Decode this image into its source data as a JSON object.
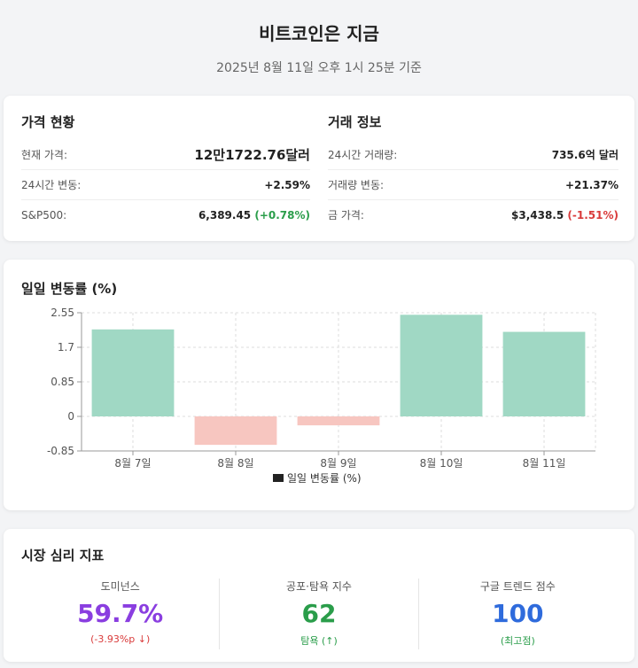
{
  "page": {
    "title": "비트코인은 지금",
    "subtitle": "2025년 8월 11일 오후 1시 25분 기준"
  },
  "price_status": {
    "heading": "가격 현황",
    "rows": [
      {
        "label": "현재 가격:",
        "value": "12만1722.76달러"
      },
      {
        "label": "24시간 변동:",
        "value": "+2.59%"
      },
      {
        "label": "S&P500:",
        "value": "6,389.45",
        "change": "(+0.78%)"
      }
    ]
  },
  "trade_info": {
    "heading": "거래 정보",
    "rows": [
      {
        "label": "24시간 거래량:",
        "value": "735.6억 달러"
      },
      {
        "label": "거래량 변동:",
        "value": "+21.37%"
      },
      {
        "label": "금 가격:",
        "value": "$3,438.5",
        "change": "(-1.51%)"
      }
    ]
  },
  "chart_data": {
    "type": "bar",
    "title": "일일 변동률 (%)",
    "categories": [
      "8월 7일",
      "8월 8일",
      "8월 9일",
      "8월 10일",
      "8월 11일"
    ],
    "series": [
      {
        "name": "일일 변동률 (%)",
        "values": [
          2.14,
          -0.7,
          -0.22,
          2.5,
          2.08
        ]
      }
    ],
    "yticks": [
      "2.55",
      "1.7",
      "0.85",
      "0",
      "-0.85"
    ],
    "ylim": [
      -0.85,
      2.55
    ],
    "grid": true,
    "legend": "bottom",
    "colors": {
      "positive": "#a0d8c4",
      "negative": "#f7c6c0"
    }
  },
  "sentiment": {
    "heading": "시장 심리 지표",
    "items": [
      {
        "label": "도미넌스",
        "value": "59.7%",
        "sub": "(-3.93%p ↓)",
        "value_color": "#8a3ee0",
        "sub_color": "#d93a3a"
      },
      {
        "label": "공포·탐욕 지수",
        "value": "62",
        "sub": "탐욕 (↑)",
        "value_color": "#2a9d4a",
        "sub_color": "#2a9d4a"
      },
      {
        "label": "구글 트렌드 점수",
        "value": "100",
        "sub": "(최고점)",
        "value_color": "#2f6bdc",
        "sub_color": "#2a9d4a"
      }
    ]
  }
}
